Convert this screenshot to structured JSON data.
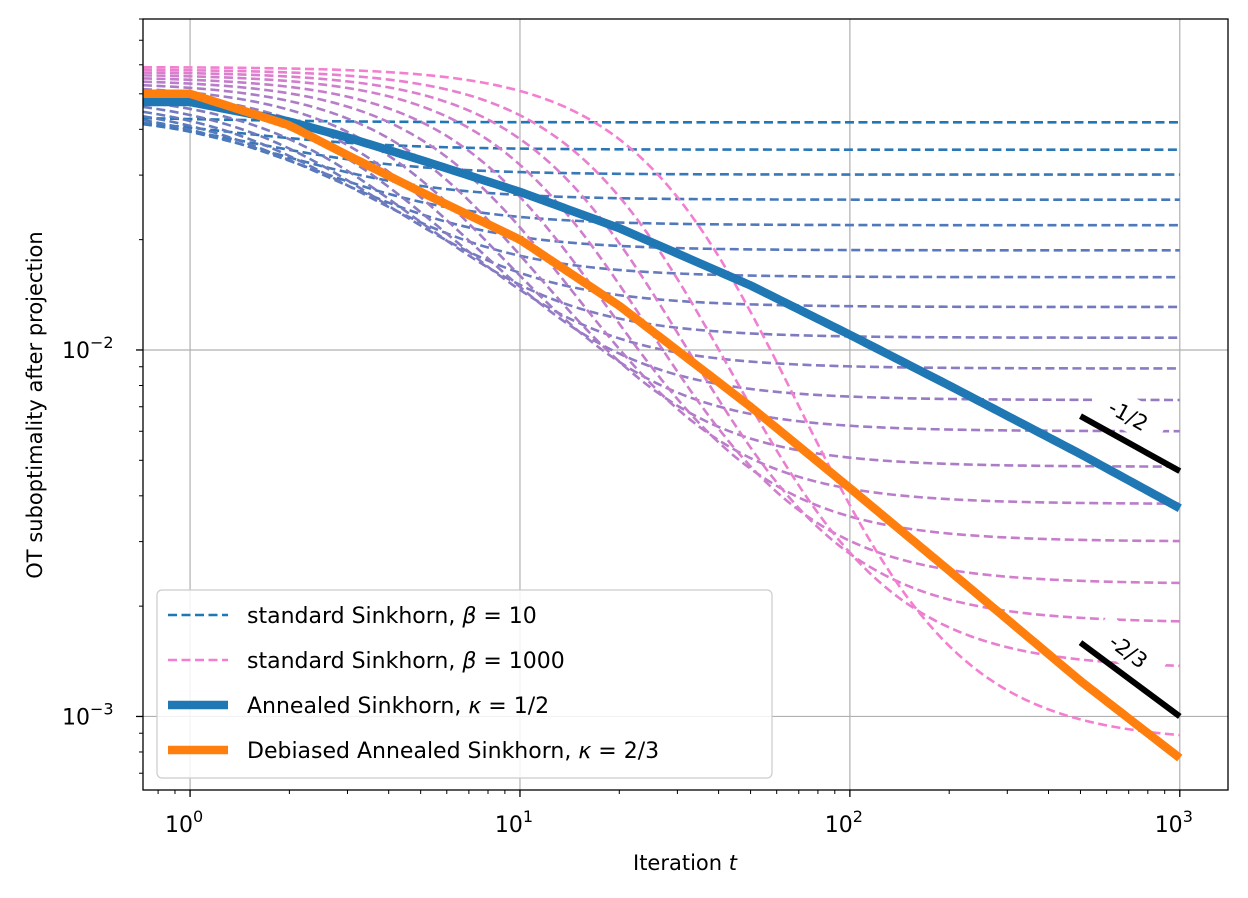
{
  "chart_data": {
    "type": "line",
    "xscale": "log",
    "yscale": "log",
    "xlim": [
      0.72,
      1400
    ],
    "ylim": [
      0.00063,
      0.08
    ],
    "grid": true,
    "xlabel_text": "Iteration ",
    "xlabel_var": "t",
    "ylabel": "OT suboptimality after projection",
    "x_ticks": [
      {
        "value": 1,
        "base": "10",
        "exp": "0"
      },
      {
        "value": 10,
        "base": "10",
        "exp": "1"
      },
      {
        "value": 100,
        "base": "10",
        "exp": "2"
      },
      {
        "value": 1000,
        "base": "10",
        "exp": "3"
      }
    ],
    "y_ticks": [
      {
        "value": 0.01,
        "base": "10",
        "exp": "−2"
      },
      {
        "value": 0.001,
        "base": "10",
        "exp": "−3"
      }
    ],
    "colors": {
      "blue": "#1f77b4",
      "orange": "#ff7f0e",
      "pink": "#f47fd1",
      "grid": "#b0b0b0",
      "black": "#000000"
    },
    "standard_family": {
      "count": 19,
      "color_from": "#1f77b4",
      "color_to": "#f47fd1",
      "start_low": 0.0435,
      "start_high": 0.0592,
      "plateaus": [
        0.0418,
        0.0352,
        0.0301,
        0.0257,
        0.0219,
        0.0187,
        0.0158,
        0.0131,
        0.0108,
        0.0089,
        0.0073,
        0.006,
        0.0048,
        0.0038,
        0.003,
        0.0023,
        0.0018,
        0.00135,
        0.00085
      ]
    },
    "series": [
      {
        "name": "Annealed Sinkhorn",
        "color": "#1f77b4",
        "x": [
          0.72,
          1,
          2,
          3,
          5,
          10,
          20,
          50,
          100,
          200,
          500,
          1000
        ],
        "y": [
          0.0475,
          0.0475,
          0.042,
          0.038,
          0.033,
          0.027,
          0.0215,
          0.015,
          0.011,
          0.008,
          0.0052,
          0.0037
        ]
      },
      {
        "name": "Debiased Annealed Sinkhorn",
        "color": "#ff7f0e",
        "x": [
          0.72,
          1,
          2,
          3,
          5,
          10,
          20,
          50,
          100,
          200,
          500,
          1000
        ],
        "y": [
          0.05,
          0.05,
          0.041,
          0.034,
          0.027,
          0.02,
          0.0132,
          0.007,
          0.0042,
          0.0025,
          0.00125,
          0.00077
        ]
      }
    ],
    "slope_lines": [
      {
        "label": "-1/2",
        "x": [
          500,
          1000
        ],
        "y": [
          0.0066,
          0.00467
        ]
      },
      {
        "label": "-2/3",
        "x": [
          500,
          1000
        ],
        "y": [
          0.00159,
          0.001
        ]
      }
    ],
    "legend": {
      "placement": "lower-left",
      "entries": [
        {
          "label": "standard Sinkhorn, ",
          "math_var": "β",
          "math_rest": " = 10",
          "style": "dashed",
          "color": "#1f77b4"
        },
        {
          "label": "standard Sinkhorn, ",
          "math_var": "β",
          "math_rest": " = 1000",
          "style": "dashed",
          "color": "#f47fd1"
        },
        {
          "label": "Annealed Sinkhorn, ",
          "math_var": "κ",
          "math_rest": " = 1/2",
          "style": "solid",
          "color": "#1f77b4"
        },
        {
          "label": "Debiased Annealed Sinkhorn, ",
          "math_var": "κ",
          "math_rest": " = 2/3",
          "style": "solid",
          "color": "#ff7f0e"
        }
      ]
    }
  }
}
